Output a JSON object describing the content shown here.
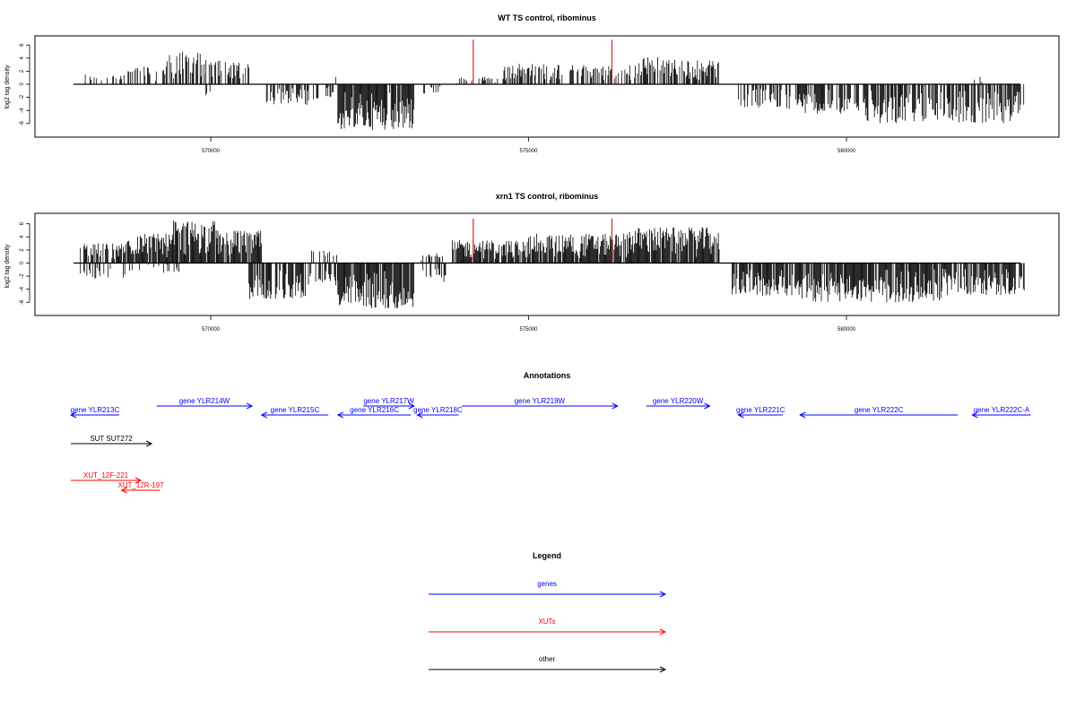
{
  "chart_data": [
    {
      "type": "bar",
      "title": "WT TS control, ribominus",
      "ylabel": "log2 tag density",
      "xlabel": "",
      "xlim": [
        567800,
        582900
      ],
      "ylim": [
        -7.5,
        7
      ],
      "x_ticks": [
        570000,
        575000,
        580000
      ],
      "y_ticks": [
        6,
        4,
        2,
        0,
        -2,
        -4,
        -6
      ],
      "grid": false,
      "regions": [
        {
          "start": 567950,
          "end": 568700,
          "strand": "+",
          "max": 1.6,
          "density": 0.28
        },
        {
          "start": 568700,
          "end": 569300,
          "strand": "+",
          "max": 2.8,
          "density": 0.45
        },
        {
          "start": 569300,
          "end": 569900,
          "strand": "+",
          "max": 5.0,
          "density": 0.55
        },
        {
          "start": 569900,
          "end": 570600,
          "strand": "+",
          "max": 3.8,
          "density": 0.65
        },
        {
          "start": 569900,
          "end": 570000,
          "strand": "-",
          "max": 3.5,
          "density": 0.3
        },
        {
          "start": 570750,
          "end": 571700,
          "strand": "-",
          "max": 3.2,
          "density": 0.45
        },
        {
          "start": 571800,
          "end": 572000,
          "strand": "+",
          "max": 1.5,
          "density": 0.2
        },
        {
          "start": 571800,
          "end": 572000,
          "strand": "-",
          "max": 2.0,
          "density": 0.3
        },
        {
          "start": 572000,
          "end": 573200,
          "strand": "-",
          "max": 7.0,
          "density": 0.95
        },
        {
          "start": 573300,
          "end": 573700,
          "strand": "-",
          "max": 1.5,
          "density": 0.3
        },
        {
          "start": 573800,
          "end": 574600,
          "strand": "+",
          "max": 1.2,
          "density": 0.2
        },
        {
          "start": 574600,
          "end": 575500,
          "strand": "+",
          "max": 3.2,
          "density": 0.5
        },
        {
          "start": 575500,
          "end": 576700,
          "strand": "+",
          "max": 3.0,
          "density": 0.55
        },
        {
          "start": 576700,
          "end": 577300,
          "strand": "+",
          "max": 4.2,
          "density": 0.6
        },
        {
          "start": 577300,
          "end": 578000,
          "strand": "+",
          "max": 3.8,
          "density": 0.8
        },
        {
          "start": 578300,
          "end": 579200,
          "strand": "-",
          "max": 3.8,
          "density": 0.45
        },
        {
          "start": 579200,
          "end": 580300,
          "strand": "-",
          "max": 4.5,
          "density": 0.7
        },
        {
          "start": 580300,
          "end": 582800,
          "strand": "-",
          "max": 6.0,
          "density": 0.7
        },
        {
          "start": 582000,
          "end": 582200,
          "strand": "+",
          "max": 1.2,
          "density": 0.3
        }
      ],
      "highlight_lines": [
        {
          "x": 574130,
          "y": 6.8,
          "color": "#cc0000"
        },
        {
          "x": 576310,
          "y": 6.8,
          "color": "#cc0000"
        }
      ]
    },
    {
      "type": "bar",
      "title": "xrn1 TS control, ribominus",
      "ylabel": "log2 tag density",
      "xlabel": "",
      "xlim": [
        567800,
        582900
      ],
      "ylim": [
        -7.5,
        7
      ],
      "x_ticks": [
        570000,
        575000,
        580000
      ],
      "y_ticks": [
        6,
        4,
        2,
        0,
        -2,
        -4,
        -6
      ],
      "grid": false,
      "regions": [
        {
          "start": 567950,
          "end": 568700,
          "strand": "+",
          "max": 3.2,
          "density": 0.7
        },
        {
          "start": 567950,
          "end": 568700,
          "strand": "-",
          "max": 2.5,
          "density": 0.3
        },
        {
          "start": 568700,
          "end": 569400,
          "strand": "+",
          "max": 4.5,
          "density": 0.85
        },
        {
          "start": 568700,
          "end": 569500,
          "strand": "-",
          "max": 1.5,
          "density": 0.2
        },
        {
          "start": 569400,
          "end": 570100,
          "strand": "+",
          "max": 6.5,
          "density": 0.95
        },
        {
          "start": 570100,
          "end": 570800,
          "strand": "+",
          "max": 5.0,
          "density": 0.9
        },
        {
          "start": 570600,
          "end": 571500,
          "strand": "-",
          "max": 5.5,
          "density": 0.7
        },
        {
          "start": 571500,
          "end": 572000,
          "strand": "+",
          "max": 2.0,
          "density": 0.3
        },
        {
          "start": 571500,
          "end": 572000,
          "strand": "-",
          "max": 3.5,
          "density": 0.5
        },
        {
          "start": 572000,
          "end": 573200,
          "strand": "-",
          "max": 7.0,
          "density": 0.95
        },
        {
          "start": 573300,
          "end": 573700,
          "strand": "-",
          "max": 3.0,
          "density": 0.4
        },
        {
          "start": 573300,
          "end": 573700,
          "strand": "+",
          "max": 1.5,
          "density": 0.3
        },
        {
          "start": 573800,
          "end": 575000,
          "strand": "+",
          "max": 3.5,
          "density": 0.85
        },
        {
          "start": 575000,
          "end": 576500,
          "strand": "+",
          "max": 4.5,
          "density": 0.9
        },
        {
          "start": 576500,
          "end": 578000,
          "strand": "+",
          "max": 5.5,
          "density": 0.95
        },
        {
          "start": 578200,
          "end": 579300,
          "strand": "-",
          "max": 5.0,
          "density": 0.85
        },
        {
          "start": 579300,
          "end": 581500,
          "strand": "-",
          "max": 6.0,
          "density": 0.85
        },
        {
          "start": 581500,
          "end": 582800,
          "strand": "-",
          "max": 5.0,
          "density": 0.8
        }
      ],
      "highlight_lines": [
        {
          "x": 574130,
          "y": 6.8,
          "color": "#cc0000"
        },
        {
          "x": 576310,
          "y": 6.8,
          "color": "#cc0000"
        }
      ]
    }
  ],
  "annotations": {
    "title": "Annotations",
    "genes_color": "#0000ff",
    "xuts_color": "#ff0000",
    "other_color": "#000000",
    "genes": [
      {
        "label": "gene YLR213C",
        "start": 567800,
        "end": 568560,
        "strand": "-",
        "row": 1
      },
      {
        "label": "gene YLR214W",
        "start": 569150,
        "end": 570650,
        "strand": "+",
        "row": 0
      },
      {
        "label": "gene YLR215C",
        "start": 570800,
        "end": 571850,
        "strand": "-",
        "row": 1
      },
      {
        "label": "gene YLR216C",
        "start": 572000,
        "end": 573150,
        "strand": "-",
        "row": 1
      },
      {
        "label": "gene YLR217W",
        "start": 572400,
        "end": 573200,
        "strand": "+",
        "row": 0
      },
      {
        "label": "gene YLR218C",
        "start": 573250,
        "end": 573900,
        "strand": "-",
        "row": 1
      },
      {
        "label": "gene YLR219W",
        "start": 573950,
        "end": 576400,
        "strand": "+",
        "row": 0
      },
      {
        "label": "gene YLR220W",
        "start": 576850,
        "end": 577850,
        "strand": "+",
        "row": 0
      },
      {
        "label": "gene YLR221C",
        "start": 578300,
        "end": 579000,
        "strand": "-",
        "row": 1
      },
      {
        "label": "gene YLR222C",
        "start": 579270,
        "end": 581750,
        "strand": "-",
        "row": 1
      },
      {
        "label": "gene YLR222C-A",
        "start": 581980,
        "end": 582900,
        "strand": "-",
        "row": 1
      }
    ],
    "others": [
      {
        "label": "SUT SUT272",
        "start": 567800,
        "end": 569070,
        "strand": "+",
        "row": 3
      }
    ],
    "xuts": [
      {
        "label": "XUT_12F-221",
        "start": 567800,
        "end": 568900,
        "strand": "+",
        "row": 5
      },
      {
        "label": "XUT_12R-197",
        "start": 568600,
        "end": 569200,
        "strand": "-",
        "row": 6
      }
    ]
  },
  "legend": {
    "title": "Legend",
    "items": [
      {
        "label": "genes",
        "color": "#0000ff"
      },
      {
        "label": "XUTs",
        "color": "#ff0000"
      },
      {
        "label": "other",
        "color": "#000000"
      }
    ]
  }
}
